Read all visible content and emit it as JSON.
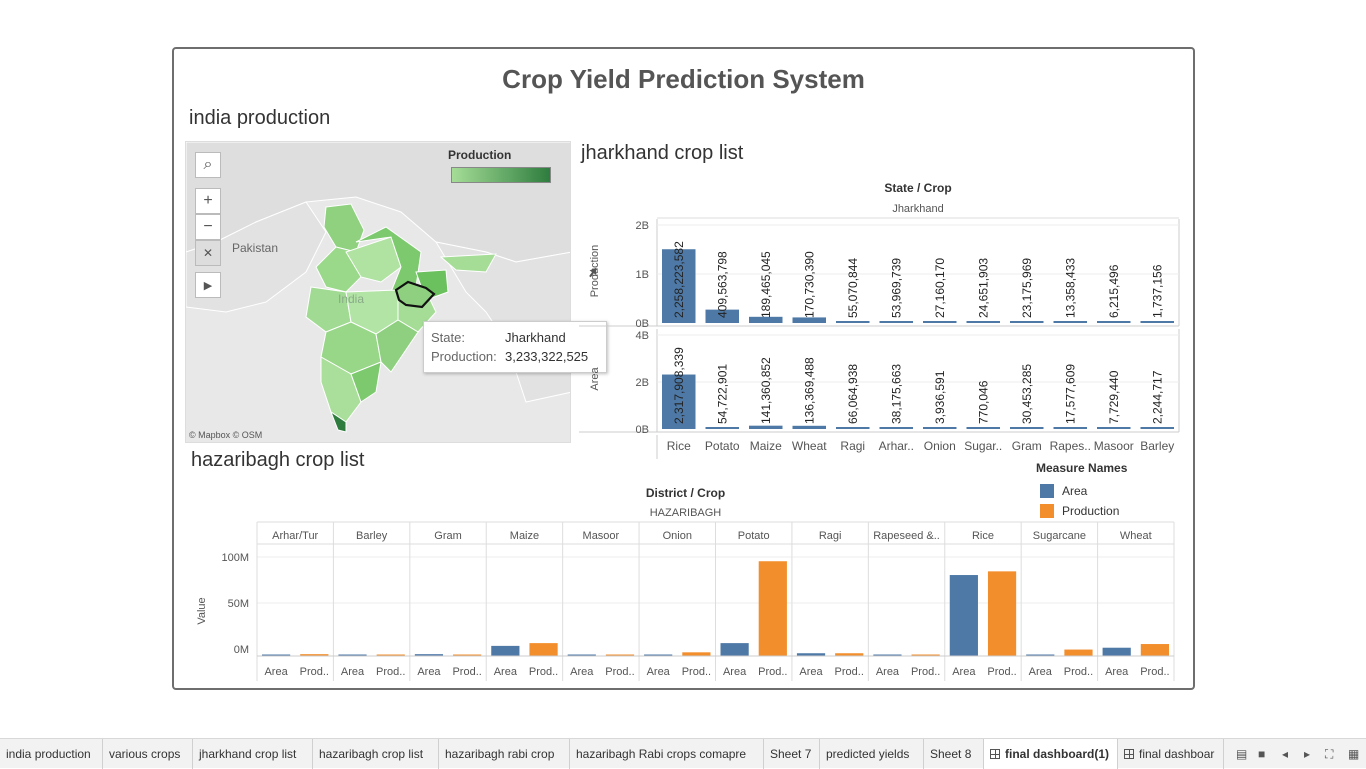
{
  "dashboard": {
    "title": "Crop Yield  Prediction System",
    "map_section_title": "india production",
    "jharkhand_section_title": "jharkhand crop list",
    "hazaribagh_section_title": "hazaribagh crop list"
  },
  "map": {
    "legend_title": "Production",
    "legend_colors": [
      "#a5dd97",
      "#2e7d3e"
    ],
    "country_labels": [
      "Pakistan",
      "India"
    ],
    "credit": "© Mapbox © OSM",
    "controls": [
      "search-icon",
      "zoom-in-icon",
      "zoom-out-icon",
      "pin-reset-icon",
      "play-icon"
    ],
    "tooltip": {
      "state_label": "State:",
      "state_value": "Jharkhand",
      "production_label": "Production:",
      "production_value": "3,233,322,525"
    }
  },
  "measure_legend": {
    "title": "Measure Names",
    "items": [
      {
        "name": "Area",
        "color": "#4e79a7"
      },
      {
        "name": "Production",
        "color": "#f28e2b"
      }
    ]
  },
  "chart_data": [
    {
      "type": "bar",
      "header": "State / Crop",
      "group": "Jharkhand",
      "categories": [
        "Rice",
        "Potato",
        "Maize",
        "Wheat",
        "Ragi",
        "Arhar..",
        "Onion",
        "Sugar..",
        "Gram",
        "Rapes..",
        "Masoor",
        "Barley"
      ],
      "panels": [
        {
          "ylabel": "Production",
          "yticks": [
            "0B",
            "1B",
            "2B"
          ],
          "ylim": [
            0,
            3000000000
          ],
          "values": [
            2258223582,
            409563798,
            189465045,
            170730390,
            55070844,
            53969739,
            27160170,
            24651903,
            23175969,
            13358433,
            6215496,
            1737156
          ],
          "labels": [
            "2,258,223,582",
            "409,563,798",
            "189,465,045",
            "170,730,390",
            "55,070,844",
            "53,969,739",
            "27,160,170",
            "24,651,903",
            "23,175,969",
            "13,358,433",
            "6,215,496",
            "1,737,156"
          ]
        },
        {
          "ylabel": "Area",
          "yticks": [
            "0B",
            "2B",
            "4B"
          ],
          "ylim": [
            0,
            4000000000
          ],
          "values": [
            2317908339,
            54722901,
            141360852,
            136369488,
            66064938,
            38175663,
            3936591,
            770046,
            30453285,
            17577609,
            7729440,
            2244717
          ],
          "labels": [
            "2,317,908,339",
            "54,722,901",
            "141,360,852",
            "136,369,488",
            "66,064,938",
            "38,175,663",
            "3,936,591",
            "770,046",
            "30,453,285",
            "17,577,609",
            "7,729,440",
            "2,244,717"
          ]
        }
      ],
      "color": "#4e79a7"
    },
    {
      "type": "bar",
      "header": "District / Crop",
      "group": "HAZARIBAGH",
      "ylabel": "Value",
      "yticks": [
        "0M",
        "50M",
        "100M"
      ],
      "ylim": [
        0,
        110000000
      ],
      "categories": [
        "Arhar/Tur",
        "Barley",
        "Gram",
        "Maize",
        "Masoor",
        "Onion",
        "Potato",
        "Ragi",
        "Rapeseed &..",
        "Rice",
        "Sugarcane",
        "Wheat"
      ],
      "sub_labels": [
        "Area",
        "Prod.."
      ],
      "series": [
        {
          "name": "Area",
          "color": "#4e79a7",
          "values": [
            1200000,
            200000,
            2000000,
            11000000,
            300000,
            1000000,
            14000000,
            3000000,
            300000,
            88000000,
            300000,
            9000000
          ]
        },
        {
          "name": "Production",
          "color": "#f28e2b",
          "values": [
            2000000,
            200000,
            1200000,
            14000000,
            300000,
            4000000,
            103000000,
            3000000,
            300000,
            92000000,
            7000000,
            13000000
          ]
        }
      ]
    }
  ],
  "sheet_tabs": [
    {
      "label": "india production",
      "active": false
    },
    {
      "label": "various crops",
      "active": false
    },
    {
      "label": "jharkhand crop list",
      "active": false
    },
    {
      "label": "hazaribagh crop list",
      "active": false
    },
    {
      "label": "hazaribagh rabi crop",
      "active": false
    },
    {
      "label": "hazaribagh Rabi crops comapre",
      "active": false
    },
    {
      "label": "Sheet 7",
      "active": false
    },
    {
      "label": "predicted yields",
      "active": false
    },
    {
      "label": "Sheet 8",
      "active": false
    },
    {
      "label": "final dashboard(1)",
      "active": true
    },
    {
      "label": "final dashboar",
      "active": false
    }
  ]
}
